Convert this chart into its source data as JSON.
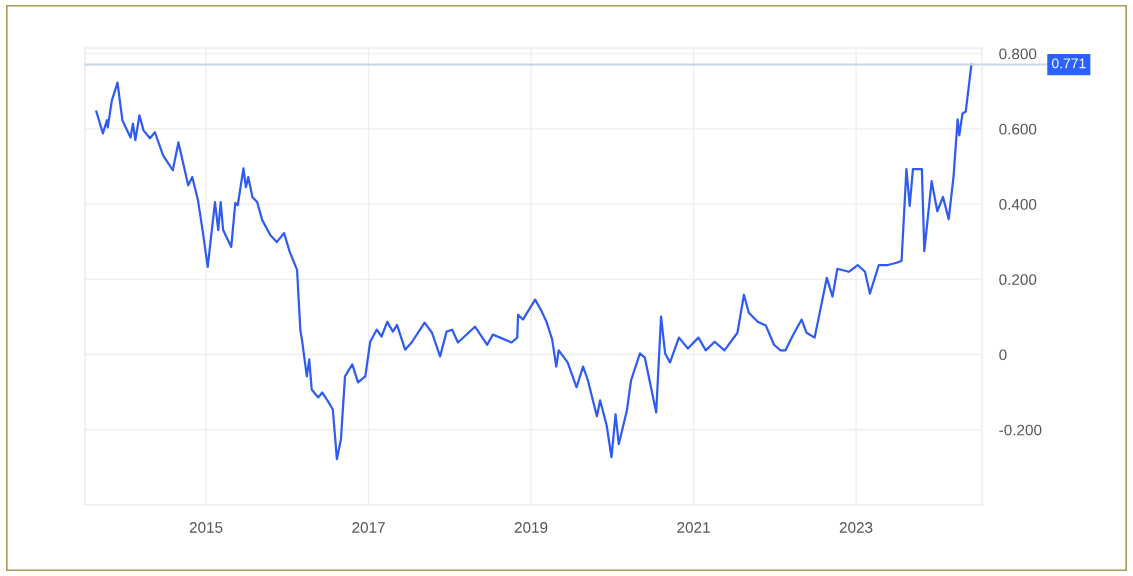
{
  "chart_data": {
    "type": "line",
    "x": [
      2013.65,
      2013.73,
      2013.78,
      2013.79,
      2013.84,
      2013.91,
      2013.97,
      2014.07,
      2014.1,
      2014.13,
      2014.18,
      2014.23,
      2014.31,
      2014.37,
      2014.47,
      2014.59,
      2014.66,
      2014.78,
      2014.83,
      2014.9,
      2014.96,
      2015.02,
      2015.11,
      2015.15,
      2015.18,
      2015.21,
      2015.31,
      2015.36,
      2015.39,
      2015.46,
      2015.49,
      2015.52,
      2015.57,
      2015.63,
      2015.69,
      2015.79,
      2015.87,
      2015.96,
      2016.03,
      2016.12,
      2016.16,
      2016.18,
      2016.24,
      2016.27,
      2016.3,
      2016.38,
      2016.43,
      2016.5,
      2016.56,
      2016.61,
      2016.66,
      2016.71,
      2016.8,
      2016.87,
      2016.96,
      2017.02,
      2017.1,
      2017.16,
      2017.23,
      2017.3,
      2017.35,
      2017.45,
      2017.53,
      2017.69,
      2017.78,
      2017.88,
      2017.96,
      2018.03,
      2018.1,
      2018.31,
      2018.46,
      2018.53,
      2018.62,
      2018.76,
      2018.83,
      2018.84,
      2018.9,
      2019.05,
      2019.12,
      2019.19,
      2019.26,
      2019.31,
      2019.34,
      2019.45,
      2019.56,
      2019.64,
      2019.7,
      2019.81,
      2019.85,
      2019.93,
      2019.99,
      2020.04,
      2020.08,
      2020.18,
      2020.23,
      2020.34,
      2020.4,
      2020.54,
      2020.6,
      2020.65,
      2020.71,
      2020.82,
      2020.93,
      2021.06,
      2021.15,
      2021.26,
      2021.38,
      2021.54,
      2021.62,
      2021.68,
      2021.79,
      2021.89,
      2021.99,
      2022.07,
      2022.13,
      2022.22,
      2022.33,
      2022.39,
      2022.49,
      2022.58,
      2022.64,
      2022.71,
      2022.77,
      2022.91,
      2023.02,
      2023.11,
      2023.17,
      2023.28,
      2023.39,
      2023.5,
      2023.56,
      2023.62,
      2023.66,
      2023.7,
      2023.81,
      2023.84,
      2023.93,
      2024.0,
      2024.07,
      2024.14,
      2024.2,
      2024.25,
      2024.27,
      2024.31,
      2024.35,
      2024.42
    ],
    "series": [
      {
        "color": "#2f5cf0",
        "values": [
          0.646,
          0.588,
          0.623,
          0.604,
          0.675,
          0.723,
          0.623,
          0.577,
          0.614,
          0.57,
          0.636,
          0.596,
          0.575,
          0.591,
          0.53,
          0.49,
          0.564,
          0.45,
          0.472,
          0.411,
          0.326,
          0.233,
          0.405,
          0.331,
          0.405,
          0.331,
          0.286,
          0.403,
          0.397,
          0.495,
          0.445,
          0.472,
          0.419,
          0.405,
          0.358,
          0.318,
          0.299,
          0.323,
          0.273,
          0.225,
          0.066,
          0.04,
          -0.058,
          -0.013,
          -0.093,
          -0.114,
          -0.101,
          -0.124,
          -0.146,
          -0.278,
          -0.225,
          -0.058,
          -0.026,
          -0.074,
          -0.058,
          0.034,
          0.066,
          0.048,
          0.087,
          0.061,
          0.079,
          0.013,
          0.032,
          0.085,
          0.058,
          -0.005,
          0.061,
          0.066,
          0.032,
          0.074,
          0.026,
          0.053,
          0.045,
          0.032,
          0.045,
          0.106,
          0.093,
          0.146,
          0.119,
          0.087,
          0.04,
          -0.032,
          0.011,
          -0.021,
          -0.087,
          -0.032,
          -0.069,
          -0.164,
          -0.122,
          -0.188,
          -0.273,
          -0.159,
          -0.238,
          -0.148,
          -0.069,
          0.003,
          -0.008,
          -0.154,
          0.101,
          0.003,
          -0.021,
          0.045,
          0.016,
          0.045,
          0.011,
          0.034,
          0.011,
          0.058,
          0.159,
          0.111,
          0.087,
          0.077,
          0.026,
          0.011,
          0.011,
          0.05,
          0.093,
          0.058,
          0.045,
          0.14,
          0.204,
          0.154,
          0.228,
          0.22,
          0.238,
          0.22,
          0.162,
          0.238,
          0.238,
          0.244,
          0.249,
          0.493,
          0.395,
          0.493,
          0.493,
          0.275,
          0.461,
          0.381,
          0.419,
          0.36,
          0.474,
          0.625,
          0.583,
          0.641,
          0.646,
          0.771
        ]
      }
    ],
    "xlim": [
      2013.51,
      2024.55
    ],
    "xticks": [
      2015,
      2017,
      2019,
      2021,
      2023
    ],
    "ylim": [
      -0.4,
      0.815
    ],
    "yticks": [
      {
        "value": -0.2,
        "label": "-0.200"
      },
      0,
      {
        "value": 0.2,
        "label": "0.200"
      },
      {
        "value": 0.4,
        "label": "0.400"
      },
      {
        "value": 0.6,
        "label": "0.600"
      },
      {
        "value": 0.8,
        "label": "0.800"
      }
    ],
    "ref_lines": [
      {
        "axis": "y",
        "value": 0.771,
        "label": "0.771",
        "color": "#c9d6e3"
      }
    ],
    "grid": true,
    "line_style": "solid",
    "marker": "none"
  }
}
